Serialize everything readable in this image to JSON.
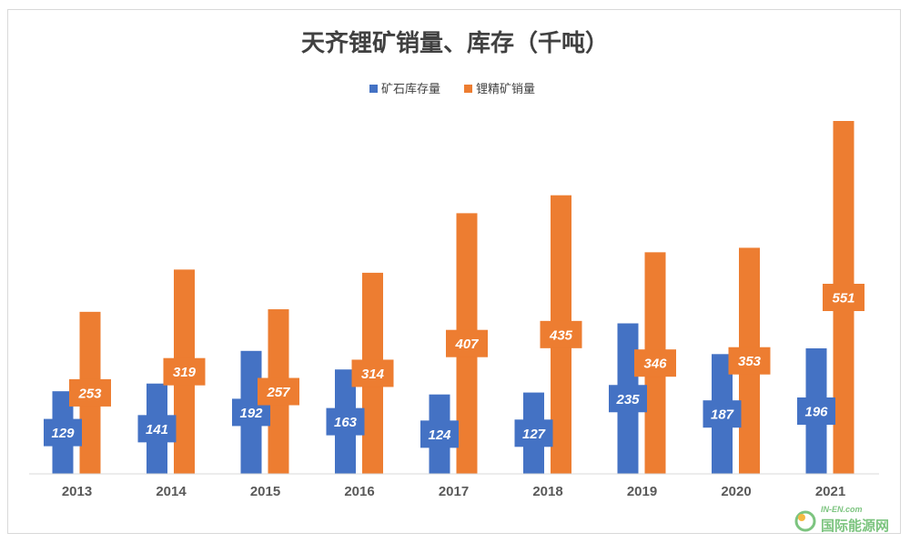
{
  "chart_data": {
    "type": "bar",
    "title": "天齐锂矿销量、库存（千吨）",
    "categories": [
      "2013",
      "2014",
      "2015",
      "2016",
      "2017",
      "2018",
      "2019",
      "2020",
      "2021"
    ],
    "series": [
      {
        "name": "矿石库存量",
        "color": "#4472c4",
        "values": [
          129,
          141,
          192,
          163,
          124,
          127,
          235,
          187,
          196
        ]
      },
      {
        "name": "锂精矿销量",
        "color": "#ed7d31",
        "values": [
          253,
          319,
          257,
          314,
          407,
          435,
          346,
          353,
          551
        ]
      }
    ],
    "xlabel": "",
    "ylabel": "",
    "ylim": [
      0,
      560
    ],
    "grid": false,
    "legend": "top-center",
    "data_labels": true
  },
  "watermark": {
    "brand": "国际能源网",
    "sub": "IN-EN.com",
    "colors": [
      "#7cc47f",
      "#f4b942",
      "#5aa9e6"
    ]
  }
}
